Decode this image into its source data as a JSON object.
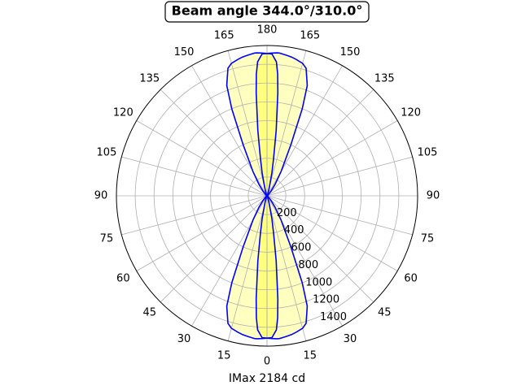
{
  "chart_data": {
    "type": "polar",
    "title": "Beam angle 344.0°/310.0°",
    "xlabel": "IMax 2184 cd",
    "theta": [
      0,
      2,
      4,
      5,
      6,
      8,
      10,
      12,
      15,
      17,
      20,
      22,
      25,
      30,
      35,
      40,
      50,
      60,
      70,
      80,
      90,
      100,
      110,
      120,
      130,
      140,
      145,
      150,
      155,
      158,
      160,
      163,
      165,
      168,
      170,
      172,
      174,
      175,
      176,
      178,
      180
    ],
    "series": [
      {
        "color": "#0000ff",
        "fill": "#ffffc0",
        "values": [
          1515,
          1520,
          1525,
          1525,
          1520,
          1510,
          1500,
          1485,
          1460,
          1420,
          1250,
          1000,
          600,
          300,
          150,
          70,
          20,
          5,
          2,
          0,
          0,
          0,
          2,
          5,
          20,
          70,
          150,
          300,
          600,
          1000,
          1250,
          1420,
          1460,
          1485,
          1500,
          1510,
          1520,
          1525,
          1525,
          1520,
          1515
        ]
      },
      {
        "color": "#0000ff",
        "fill": "#ffff80",
        "values": [
          1515,
          1510,
          1430,
          1300,
          1100,
          700,
          400,
          250,
          100,
          60,
          30,
          20,
          10,
          0,
          0,
          0,
          0,
          0,
          0,
          0,
          0,
          0,
          0,
          0,
          0,
          0,
          0,
          0,
          10,
          20,
          30,
          60,
          100,
          250,
          400,
          700,
          1100,
          1300,
          1430,
          1510,
          1515
        ]
      }
    ],
    "rlim": [
      0,
      1600
    ],
    "rticks": [
      200,
      400,
      600,
      800,
      1000,
      1200,
      1400
    ],
    "thetaticks": [
      0,
      15,
      30,
      45,
      60,
      75,
      90,
      105,
      120,
      135,
      150,
      165,
      180
    ],
    "grid": true
  }
}
